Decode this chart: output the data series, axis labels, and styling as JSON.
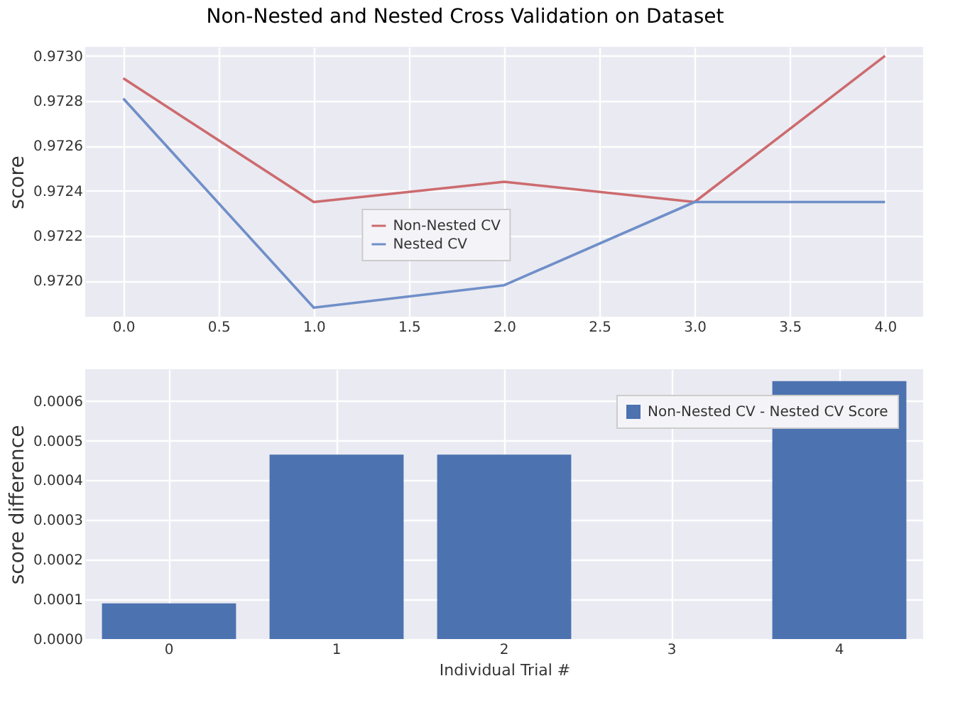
{
  "chart_data": [
    {
      "type": "line",
      "title": "Non-Nested and Nested Cross Validation on Dataset",
      "ylabel": "score",
      "x": [
        0,
        1,
        2,
        3,
        4
      ],
      "series": [
        {
          "name": "Non-Nested CV",
          "color": "#cc6b6e",
          "values": [
            0.9729,
            0.97235,
            0.97244,
            0.97235,
            0.973
          ]
        },
        {
          "name": "Nested CV",
          "color": "#6f8fc8",
          "values": [
            0.97281,
            0.97188,
            0.97198,
            0.97235,
            0.97235
          ]
        }
      ],
      "xlim": [
        -0.2,
        4.2
      ],
      "xticks": [
        {
          "value": 0,
          "label": "0.0"
        },
        {
          "value": 0.5,
          "label": "0.5"
        },
        {
          "value": 1,
          "label": "1.0"
        },
        {
          "value": 1.5,
          "label": "1.5"
        },
        {
          "value": 2,
          "label": "2.0"
        },
        {
          "value": 2.5,
          "label": "2.5"
        },
        {
          "value": 3,
          "label": "3.0"
        },
        {
          "value": 3.5,
          "label": "3.5"
        },
        {
          "value": 4,
          "label": "4.0"
        }
      ],
      "ylim": [
        0.97184,
        0.97304
      ],
      "yticks": [
        {
          "value": 0.972,
          "label": "0.9720"
        },
        {
          "value": 0.9722,
          "label": "0.9722"
        },
        {
          "value": 0.9724,
          "label": "0.9724"
        },
        {
          "value": 0.9726,
          "label": "0.9726"
        },
        {
          "value": 0.9728,
          "label": "0.9728"
        },
        {
          "value": 0.973,
          "label": "0.9730"
        }
      ],
      "grid": true,
      "legend": "center"
    },
    {
      "type": "bar",
      "xlabel": "Individual Trial #",
      "ylabel": "score difference",
      "categories": [
        "0",
        "1",
        "2",
        "3",
        "4"
      ],
      "series": [
        {
          "name": "Non-Nested CV - Nested CV Score",
          "color": "#4c72b0",
          "values": [
            9e-05,
            0.000465,
            0.000465,
            0,
            0.00065
          ]
        }
      ],
      "ylim": [
        0,
        0.00068
      ],
      "yticks": [
        {
          "value": 0,
          "label": "0.0000"
        },
        {
          "value": 0.0001,
          "label": "0.0001"
        },
        {
          "value": 0.0002,
          "label": "0.0002"
        },
        {
          "value": 0.0003,
          "label": "0.0003"
        },
        {
          "value": 0.0004,
          "label": "0.0004"
        },
        {
          "value": 0.0005,
          "label": "0.0005"
        },
        {
          "value": 0.0006,
          "label": "0.0006"
        }
      ],
      "grid": true,
      "legend": "top right"
    }
  ]
}
